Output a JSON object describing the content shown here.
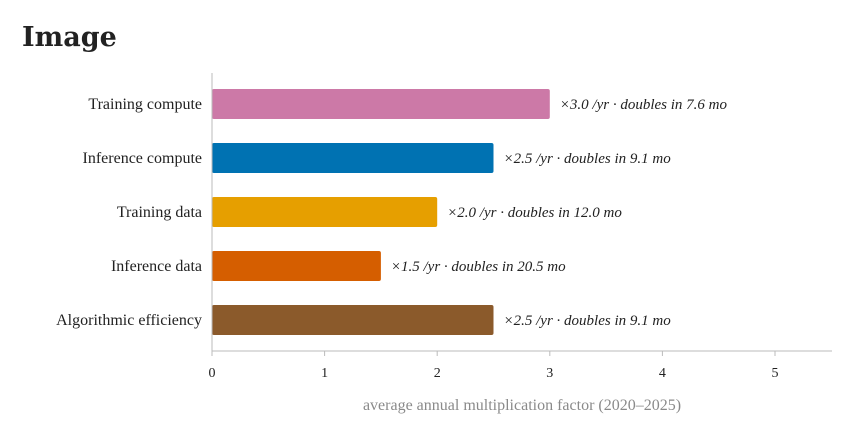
{
  "page": {
    "title": "Image"
  },
  "chart_data": {
    "type": "bar",
    "orientation": "horizontal",
    "title": "",
    "xlabel": "average annual multiplication factor (2020–2025)",
    "ylabel": "",
    "xlim": [
      0,
      5.5
    ],
    "x_ticks": [
      0,
      1,
      2,
      3,
      4,
      5
    ],
    "grid": false,
    "categories": [
      "Training compute",
      "Inference compute",
      "Training data",
      "Inference data",
      "Algorithmic efficiency"
    ],
    "values": [
      3.0,
      2.5,
      2.0,
      1.5,
      2.5
    ],
    "data_labels": [
      "×3.0 /yr · doubles in 7.6 mo",
      "×2.5 /yr · doubles in 9.1 mo",
      "×2.0 /yr · doubles in 12.0 mo",
      "×1.5 /yr · doubles in 20.5 mo",
      "×2.5 /yr · doubles in 9.1 mo"
    ],
    "colors": [
      "#cc79a7",
      "#0072b2",
      "#e69f00",
      "#d55e00",
      "#8b5a2b"
    ]
  }
}
